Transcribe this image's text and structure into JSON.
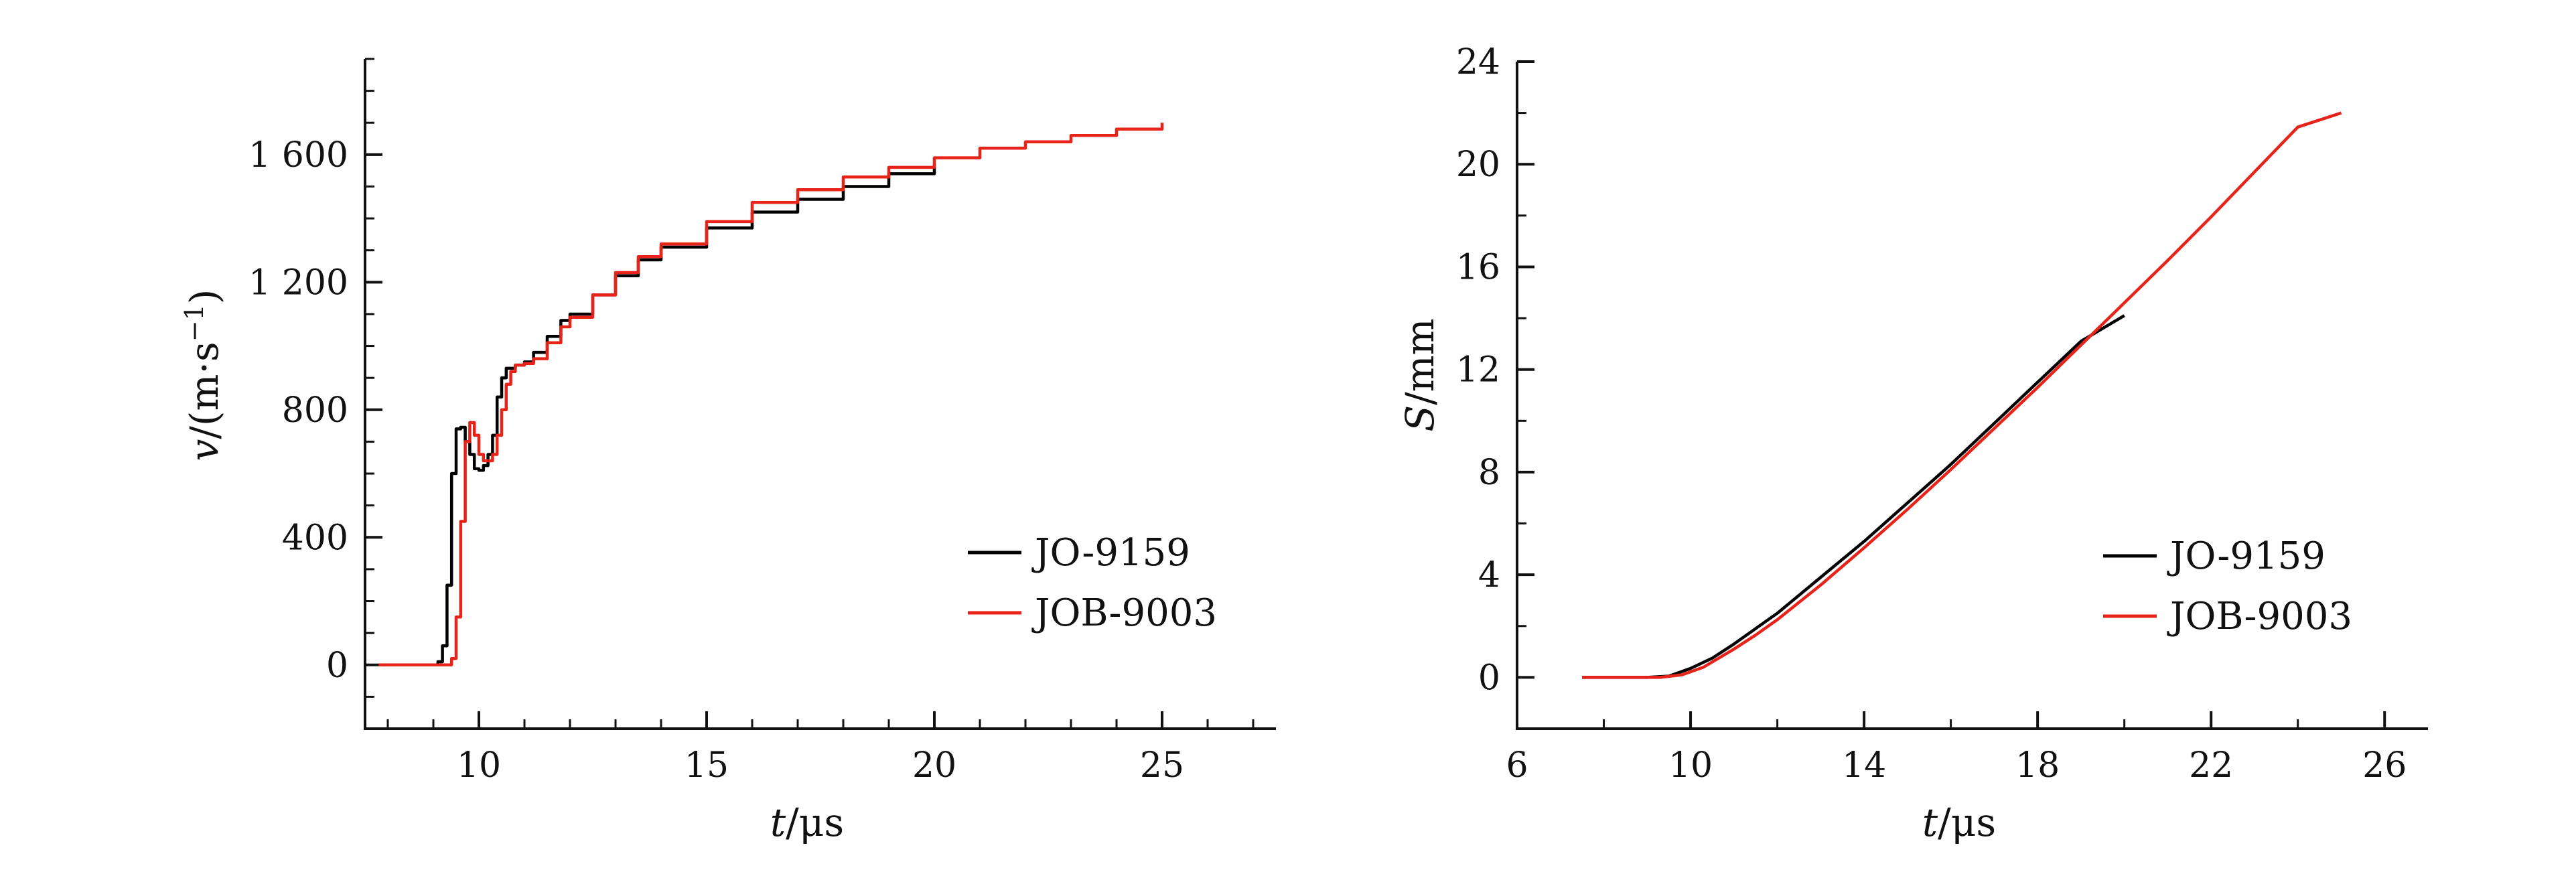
{
  "chart_data": [
    {
      "type": "line",
      "xlabel_var": "t",
      "xlabel_unit": "/μs",
      "ylabel_var": "v",
      "ylabel_unit_pre": "/(m·s",
      "ylabel_unit_sup": "−1",
      "ylabel_unit_post": ")",
      "xlim": [
        7.5,
        27.5
      ],
      "ylim": [
        -200,
        1900
      ],
      "x_ticks": [
        10,
        15,
        20,
        25
      ],
      "x_tick_labels": [
        "10",
        "15",
        "20",
        "25"
      ],
      "y_ticks": [
        0,
        400,
        800,
        1200,
        1600
      ],
      "y_tick_labels": [
        "0",
        "400",
        "800",
        "1 200",
        "1 600"
      ],
      "grid": false,
      "legend_position": "bottom-right",
      "series": [
        {
          "name": "JO-9159",
          "color": "#000000",
          "x": [
            7.8,
            9.0,
            9.1,
            9.2,
            9.3,
            9.4,
            9.5,
            9.6,
            9.7,
            9.8,
            9.9,
            10.0,
            10.1,
            10.2,
            10.3,
            10.4,
            10.5,
            10.6,
            10.8,
            11.0,
            11.2,
            11.5,
            11.8,
            12.0,
            12.5,
            13.0,
            13.5,
            14.0,
            15.0,
            16.0,
            17.0,
            18.0,
            19.0,
            20.0
          ],
          "values": [
            0,
            0,
            10,
            60,
            250,
            600,
            740,
            745,
            700,
            660,
            615,
            610,
            625,
            660,
            720,
            840,
            900,
            930,
            940,
            950,
            980,
            1030,
            1080,
            1100,
            1160,
            1220,
            1270,
            1310,
            1370,
            1420,
            1460,
            1500,
            1540,
            1570
          ]
        },
        {
          "name": "JOB-9003",
          "color": "#e8231a",
          "x": [
            7.8,
            9.3,
            9.4,
            9.5,
            9.6,
            9.7,
            9.8,
            9.9,
            10.0,
            10.1,
            10.2,
            10.3,
            10.4,
            10.5,
            10.6,
            10.7,
            10.8,
            11.0,
            11.2,
            11.5,
            11.8,
            12.0,
            12.5,
            13.0,
            13.5,
            14.0,
            15.0,
            16.0,
            17.0,
            18.0,
            19.0,
            20.0,
            21.0,
            22.0,
            23.0,
            24.0,
            25.0
          ],
          "values": [
            0,
            0,
            20,
            150,
            450,
            700,
            760,
            720,
            660,
            640,
            640,
            660,
            720,
            800,
            880,
            920,
            940,
            945,
            960,
            1010,
            1060,
            1090,
            1160,
            1230,
            1280,
            1320,
            1390,
            1450,
            1490,
            1530,
            1560,
            1590,
            1620,
            1640,
            1660,
            1680,
            1700
          ]
        }
      ]
    },
    {
      "type": "line",
      "xlabel_var": "t",
      "xlabel_unit": "/μs",
      "ylabel_var": "S",
      "ylabel_unit": "/mm",
      "xlim": [
        6,
        27
      ],
      "ylim": [
        -2,
        24
      ],
      "x_ticks": [
        6,
        10,
        14,
        18,
        22,
        26
      ],
      "x_tick_labels": [
        "6",
        "10",
        "14",
        "18",
        "22",
        "26"
      ],
      "y_ticks": [
        0,
        4,
        8,
        12,
        16,
        20,
        24
      ],
      "y_tick_labels": [
        "0",
        "4",
        "8",
        "12",
        "16",
        "20",
        "24"
      ],
      "grid": false,
      "legend_position": "bottom-right",
      "series": [
        {
          "name": "JO-9159",
          "color": "#000000",
          "x": [
            7.5,
            9.0,
            9.5,
            10.0,
            10.5,
            11.0,
            11.5,
            12.0,
            13.0,
            14.0,
            15.0,
            16.0,
            17.0,
            18.0,
            19.0,
            20.0
          ],
          "values": [
            0,
            0,
            0.05,
            0.35,
            0.75,
            1.3,
            1.9,
            2.5,
            3.9,
            5.3,
            6.8,
            8.3,
            9.9,
            11.5,
            13.1,
            14.1
          ]
        },
        {
          "name": "JOB-9003",
          "color": "#e8231a",
          "x": [
            7.5,
            9.3,
            9.8,
            10.3,
            11.0,
            11.5,
            12.0,
            13.0,
            14.0,
            15.0,
            16.0,
            17.0,
            18.0,
            19.0,
            20.0,
            21.0,
            22.0,
            23.0,
            24.0,
            25.0
          ],
          "values": [
            0,
            0,
            0.1,
            0.4,
            1.1,
            1.65,
            2.25,
            3.6,
            5.05,
            6.55,
            8.1,
            9.7,
            11.3,
            12.95,
            14.6,
            16.25,
            17.95,
            19.7,
            21.45,
            22.0
          ]
        }
      ]
    }
  ]
}
